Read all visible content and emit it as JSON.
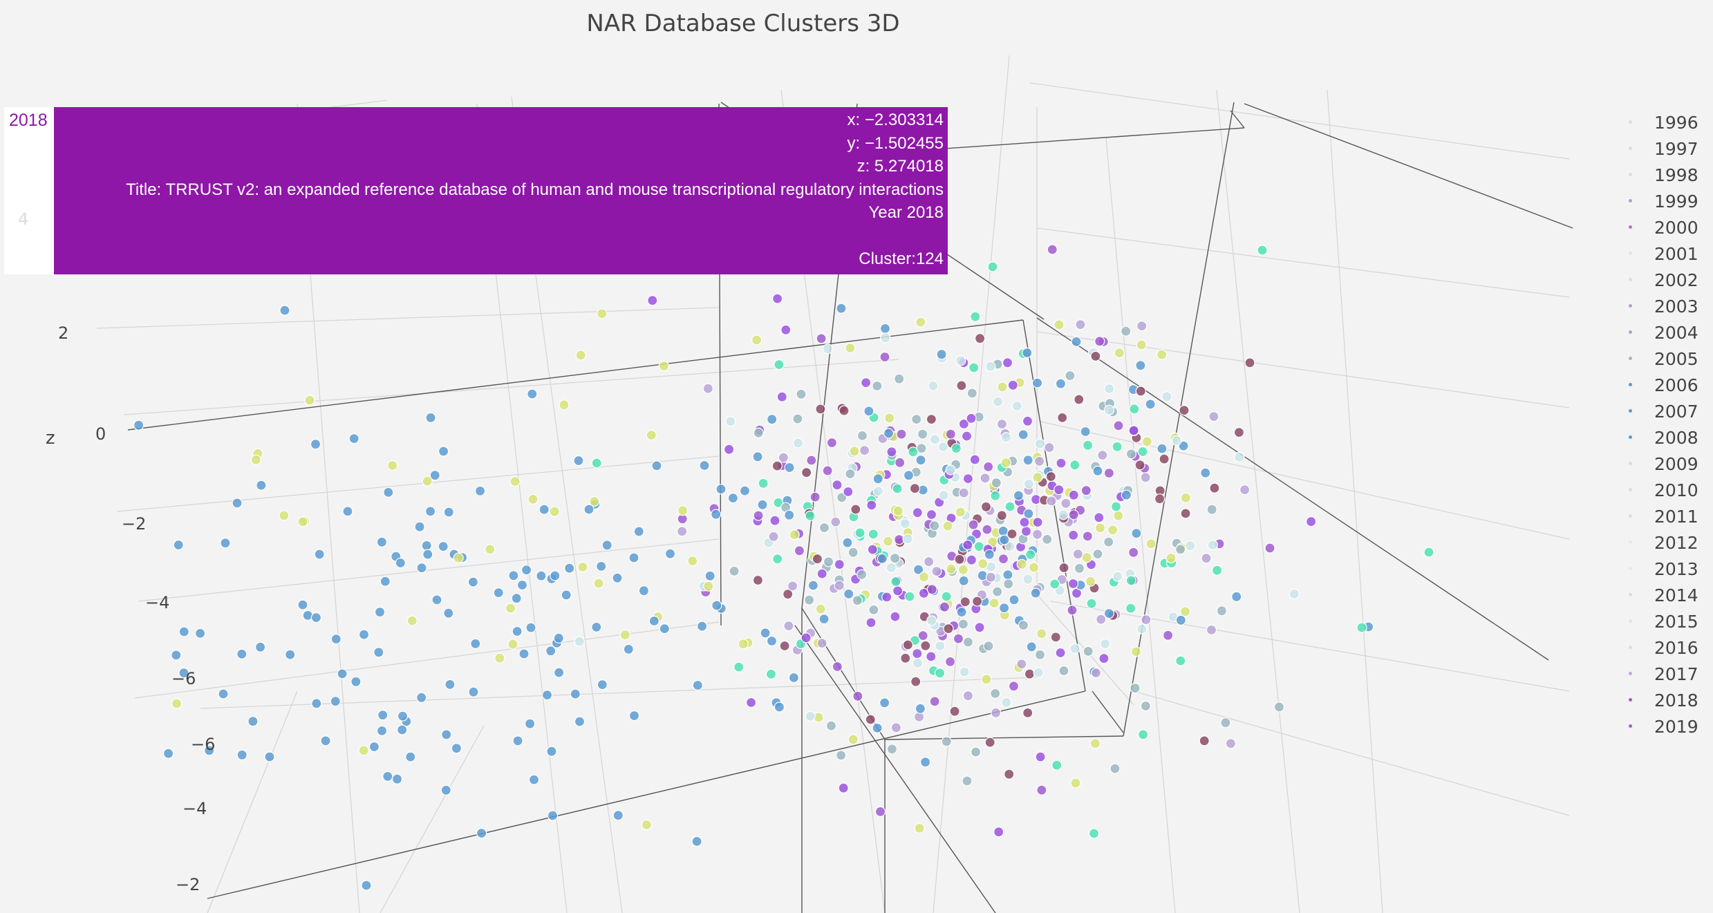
{
  "chart_data": {
    "type": "scatter",
    "title": "NAR Database Clusters 3D",
    "zlabel": "z",
    "z_ticks": [
      "4",
      "2",
      "0",
      "−2",
      "−4",
      "−6"
    ],
    "other_axis_ticks": [
      "−6",
      "−4",
      "−2"
    ],
    "legend_position": "right",
    "series": [
      {
        "name": "1996",
        "color": "#dddddd"
      },
      {
        "name": "1997",
        "color": "#dddddd"
      },
      {
        "name": "1998",
        "color": "#dddddd"
      },
      {
        "name": "1999",
        "color": "#b59bcf"
      },
      {
        "name": "2000",
        "color": "#c26ad8"
      },
      {
        "name": "2001",
        "color": "#e3e3e3"
      },
      {
        "name": "2002",
        "color": "#dddddd"
      },
      {
        "name": "2003",
        "color": "#b3a1c8"
      },
      {
        "name": "2004",
        "color": "#b3a1c8"
      },
      {
        "name": "2005",
        "color": "#9fb3c4"
      },
      {
        "name": "2006",
        "color": "#5b9bd1"
      },
      {
        "name": "2007",
        "color": "#5b9bd1"
      },
      {
        "name": "2008",
        "color": "#5b9bd1"
      },
      {
        "name": "2009",
        "color": "#dddddd"
      },
      {
        "name": "2010",
        "color": "#dddddd"
      },
      {
        "name": "2011",
        "color": "#dddddd"
      },
      {
        "name": "2012",
        "color": "#e8e8e8"
      },
      {
        "name": "2013",
        "color": "#e8e8e8"
      },
      {
        "name": "2014",
        "color": "#dddddd"
      },
      {
        "name": "2015",
        "color": "#e3e3e3"
      },
      {
        "name": "2016",
        "color": "#dddddd"
      },
      {
        "name": "2017",
        "color": "#c4a5d8"
      },
      {
        "name": "2018",
        "color": "#b44fd0"
      },
      {
        "name": "2019",
        "color": "#a95bd6"
      }
    ],
    "point_colors": [
      "#8b4a66",
      "#4fe0b3",
      "#9ab6bf",
      "#a05bd0",
      "#c9e4ea",
      "#5b9bd1",
      "#d7e276",
      "#b7a3d6",
      "#9a52e0"
    ],
    "hovered_point": {
      "x_text": "x: −2.303314",
      "y_text": "y: −1.502455",
      "z_text": "z: 5.274018",
      "title_text": "Title: TRRUST v2: an expanded reference database of human and mouse transcriptional regulatory interactions",
      "year_text": "Year 2018",
      "cluster_text": "Cluster:124",
      "trace_label": "2018",
      "ghost_tick": "4",
      "color": "#8e17a7"
    }
  }
}
